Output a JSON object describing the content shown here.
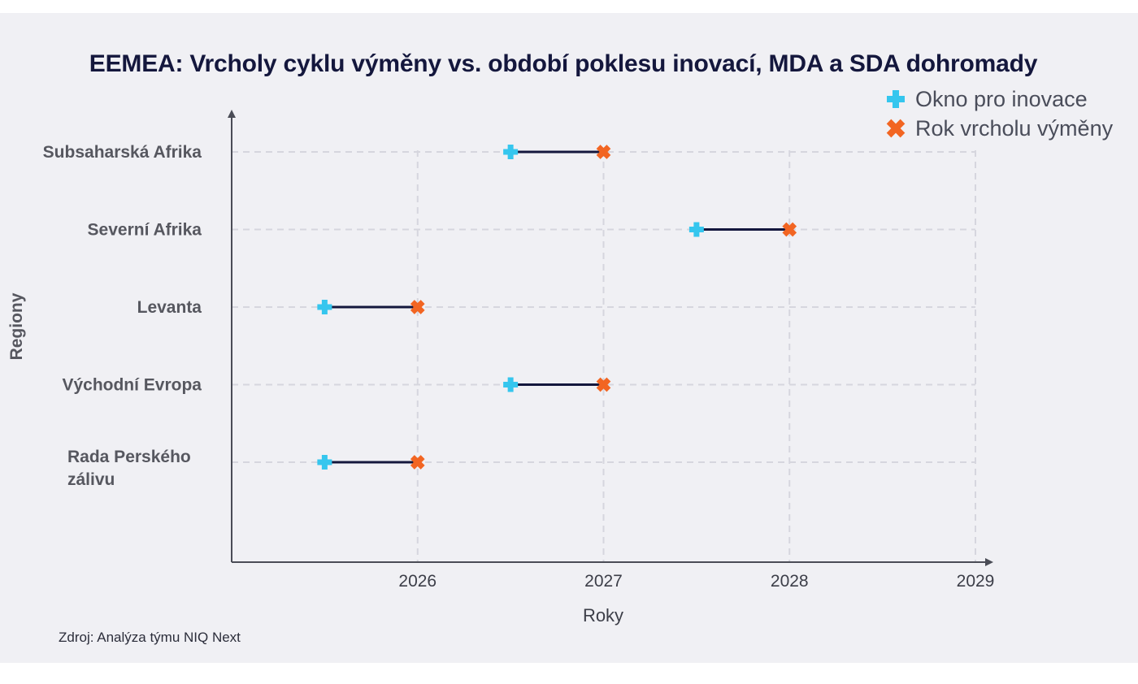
{
  "chart_data": {
    "type": "dumbbell",
    "title": "EEMEA: Vrcholy cyklu výměny vs. období poklesu inovací, MDA a SDA dohromady",
    "xlabel": "Roky",
    "ylabel": "Regiony",
    "xlim": [
      2025.0,
      2029.0
    ],
    "xticks": [
      2026,
      2027,
      2028,
      2029
    ],
    "grid": true,
    "legend_position": "top-right",
    "legend": [
      {
        "name": "Okno pro inovace",
        "marker": "plus",
        "color": "#35c6ee"
      },
      {
        "name": "Rok vrcholu výměny",
        "marker": "x",
        "color": "#f26522"
      }
    ],
    "categories": [
      {
        "label_lines": [
          "Subsaharská Afrika"
        ],
        "window_start": 2026.5,
        "peak_year": 2027
      },
      {
        "label_lines": [
          "Severní Afrika"
        ],
        "window_start": 2027.5,
        "peak_year": 2028
      },
      {
        "label_lines": [
          "Levanta"
        ],
        "window_start": 2025.5,
        "peak_year": 2026
      },
      {
        "label_lines": [
          "Východní Evropa"
        ],
        "window_start": 2026.5,
        "peak_year": 2027
      },
      {
        "label_lines": [
          "Rada Perského",
          "zálivu"
        ],
        "window_start": 2025.5,
        "peak_year": 2026
      }
    ],
    "colors": {
      "window": "#35c6ee",
      "peak": "#f26522",
      "connector": "#14173d",
      "axis": "#4a4c56",
      "grid": "#d6d6de"
    }
  },
  "source_note": "Zdroj: Analýza týmu NIQ Next"
}
